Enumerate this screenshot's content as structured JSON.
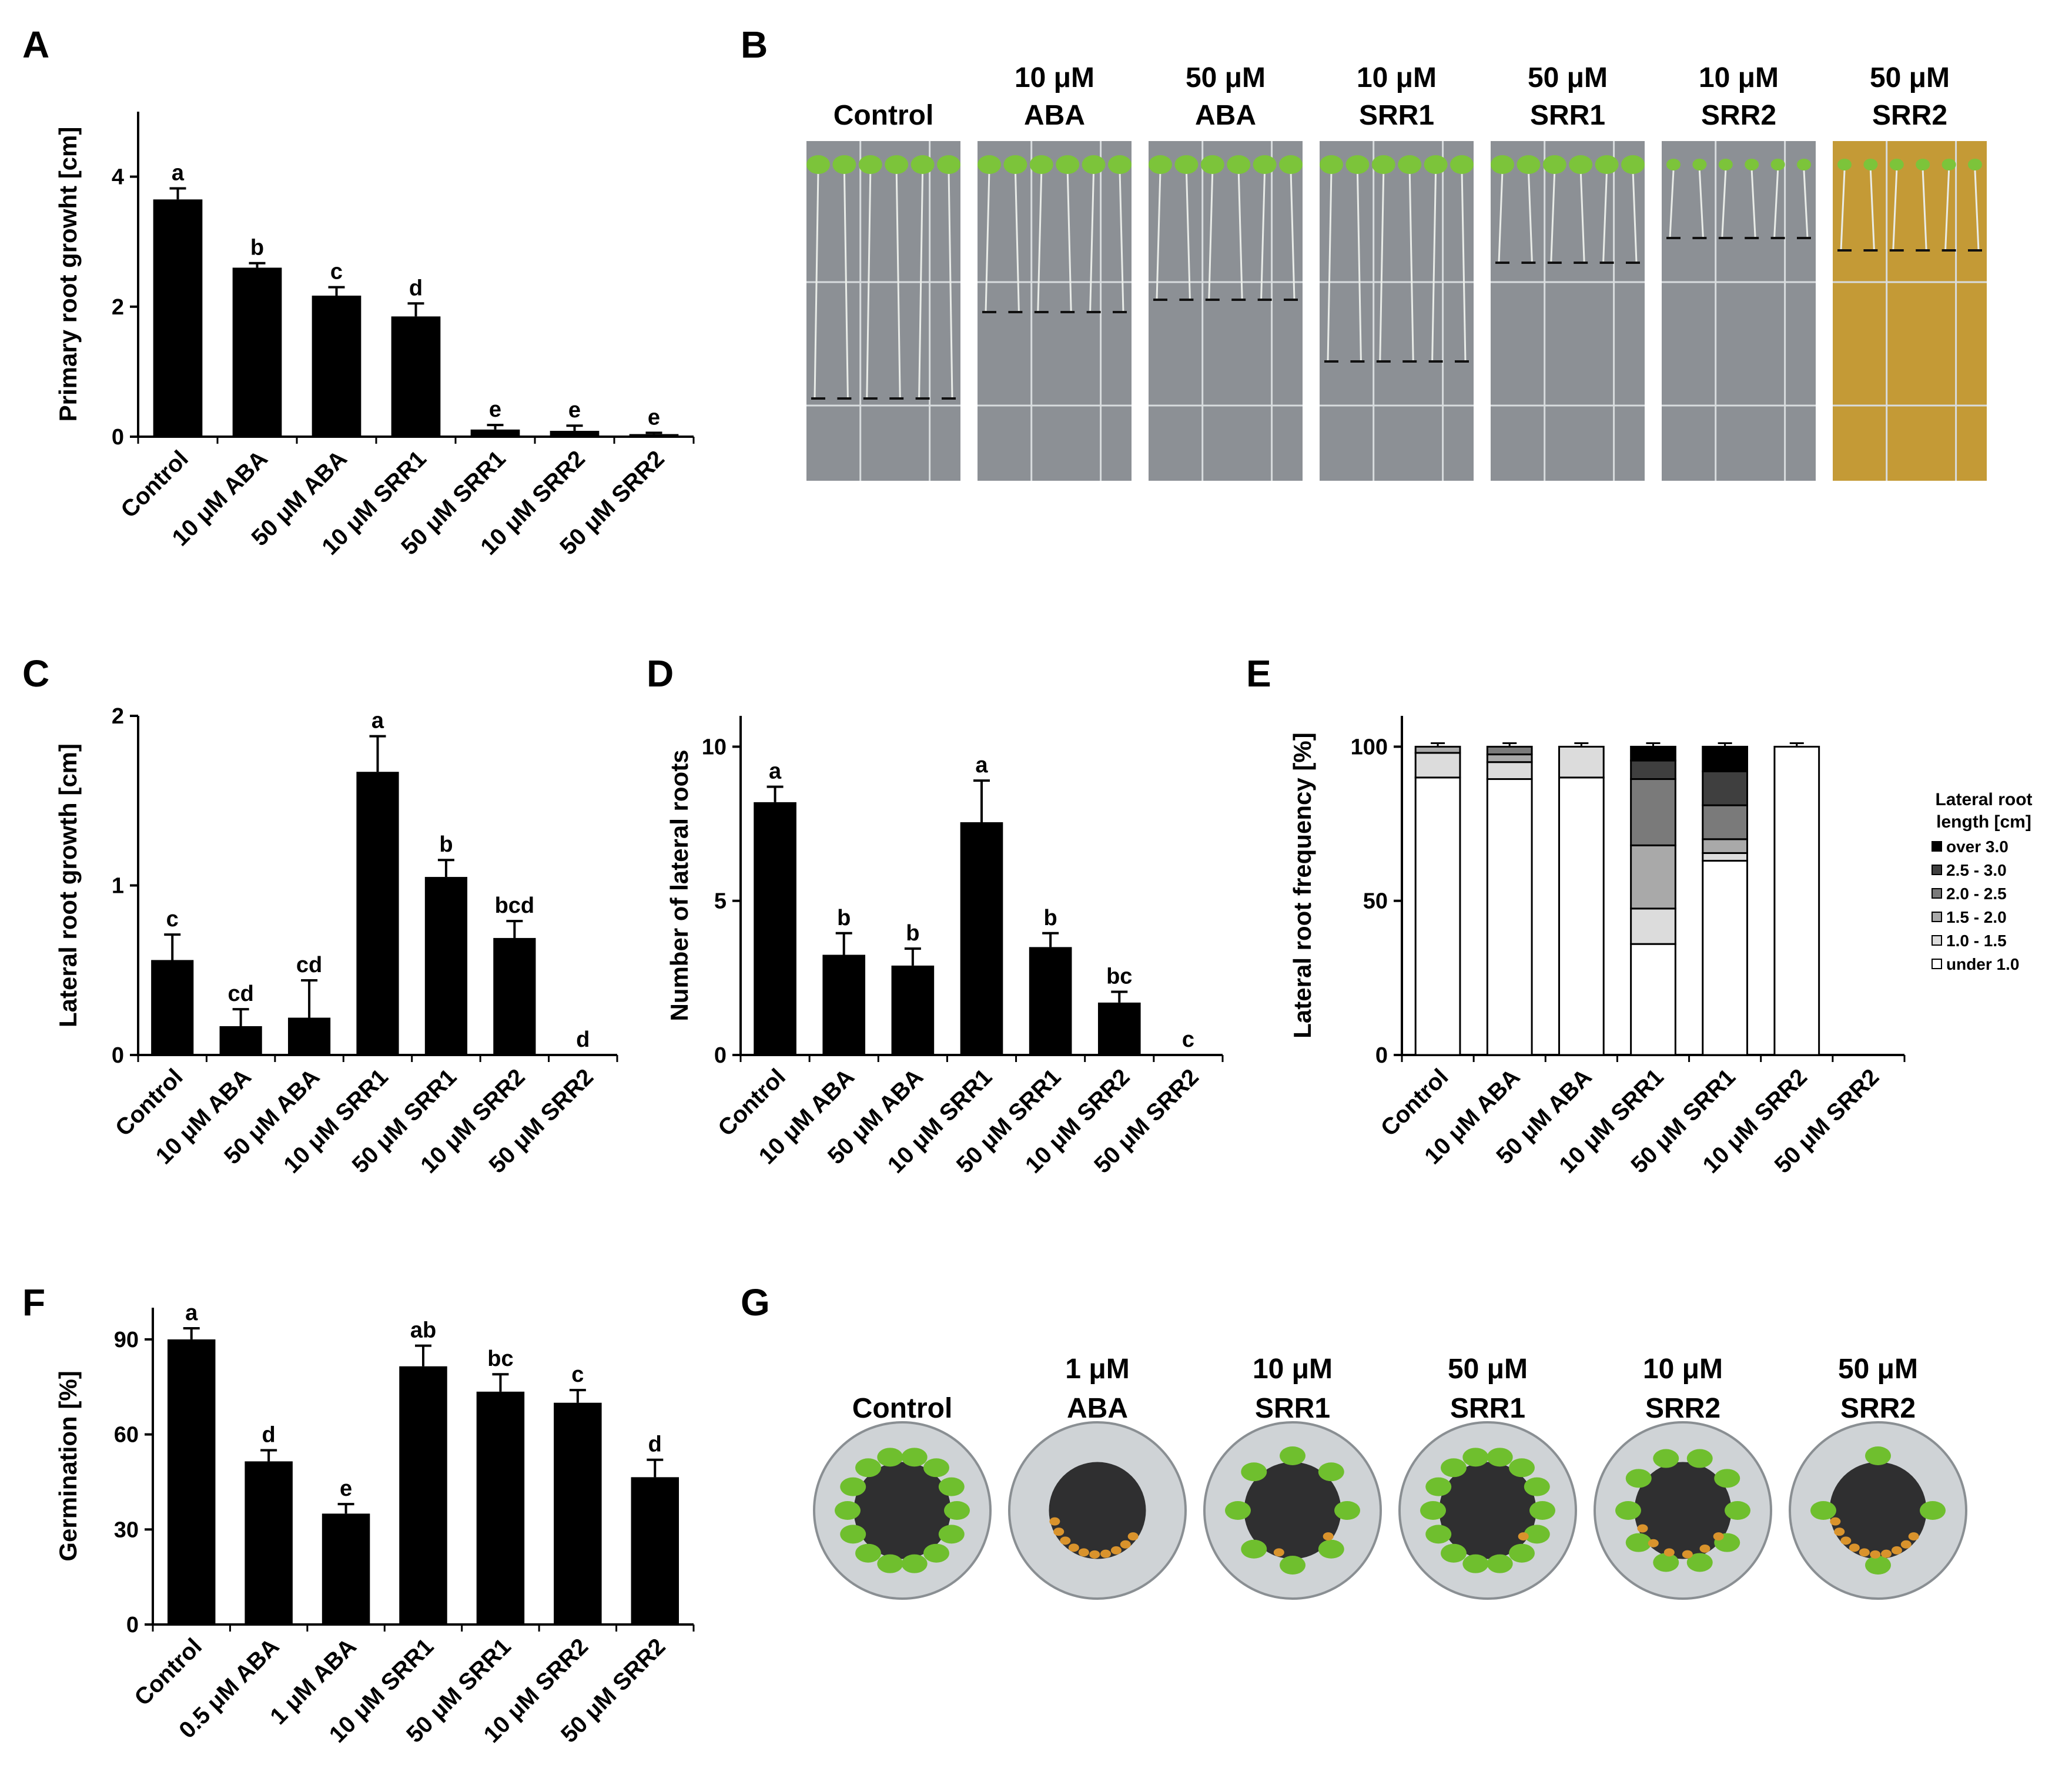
{
  "panels": {
    "A": {
      "letter": "A"
    },
    "B": {
      "letter": "B"
    },
    "C": {
      "letter": "C"
    },
    "D": {
      "letter": "D"
    },
    "E": {
      "letter": "E"
    },
    "F": {
      "letter": "F"
    },
    "G": {
      "letter": "G"
    }
  },
  "photo_B": {
    "labels": [
      {
        "line1": "",
        "line2": "Control"
      },
      {
        "line1": "10 μM",
        "line2": "ABA"
      },
      {
        "line1": "50 μM",
        "line2": "ABA"
      },
      {
        "line1": "10 μM",
        "line2": "SRR1"
      },
      {
        "line1": "50 μM",
        "line2": "SRR1"
      },
      {
        "line1": "10 μM",
        "line2": "SRR2"
      },
      {
        "line1": "50 μM",
        "line2": "SRR2"
      }
    ],
    "colors": {
      "plate": "#8c9095",
      "plate_last": "#c49a36",
      "leaf": "#7cc43a",
      "root": "#e9ece8",
      "mark": "#111111",
      "grid": "#d8dcde"
    }
  },
  "photo_G": {
    "labels": [
      {
        "line1": "",
        "line2": "Control"
      },
      {
        "line1": "1 μM",
        "line2": "ABA"
      },
      {
        "line1": "10 μM",
        "line2": "SRR1"
      },
      {
        "line1": "50 μM",
        "line2": "SRR1"
      },
      {
        "line1": "10 μM",
        "line2": "SRR2"
      },
      {
        "line1": "50 μM",
        "line2": "SRR2"
      }
    ],
    "colors": {
      "rim": "#cfd3d6",
      "soil": "#2f2f30",
      "seedling": "#6fbf2e",
      "seed": "#d9932c"
    }
  },
  "chart_data": [
    {
      "id": "A",
      "type": "bar",
      "title": "",
      "xlabel": "",
      "ylabel": "Primary root growht [cm]",
      "categories": [
        "Control",
        "10 μM ABA",
        "50 μM ABA",
        "10 μM SRR1",
        "50 μM SRR1",
        "10 μM SRR2",
        "50 μM SRR2"
      ],
      "values": [
        3.65,
        2.6,
        2.17,
        1.85,
        0.11,
        0.09,
        0.04
      ],
      "errors": [
        0.17,
        0.07,
        0.13,
        0.2,
        0.07,
        0.08,
        0.02
      ],
      "letters": [
        "a",
        "b",
        "c",
        "d",
        "e",
        "e",
        "e"
      ],
      "ylim": [
        0,
        5
      ],
      "yticks": [
        0,
        2,
        4
      ],
      "bar_color": "#000000"
    },
    {
      "id": "C",
      "type": "bar",
      "title": "",
      "xlabel": "",
      "ylabel": "Lateral root growth [cm]",
      "categories": [
        "Control",
        "10 μM ABA",
        "50 μM ABA",
        "10 μM SRR1",
        "50 μM SRR1",
        "10 μM SRR2",
        "50 μM SRR2"
      ],
      "values": [
        0.56,
        0.17,
        0.22,
        1.67,
        1.05,
        0.69,
        0
      ],
      "errors": [
        0.15,
        0.1,
        0.22,
        0.21,
        0.1,
        0.1,
        0
      ],
      "letters": [
        "c",
        "cd",
        "cd",
        "a",
        "b",
        "bcd",
        "d"
      ],
      "ylim": [
        0,
        2
      ],
      "yticks": [
        0,
        1,
        2
      ],
      "bar_color": "#000000"
    },
    {
      "id": "D",
      "type": "bar",
      "title": "",
      "xlabel": "",
      "ylabel": "Number of lateral roots",
      "categories": [
        "Control",
        "10 μM ABA",
        "50 μM ABA",
        "10 μM SRR1",
        "50 μM SRR1",
        "10 μM SRR2",
        "50 μM SRR2"
      ],
      "values": [
        8.2,
        3.25,
        2.9,
        7.55,
        3.5,
        1.7,
        0
      ],
      "errors": [
        0.5,
        0.7,
        0.55,
        1.35,
        0.45,
        0.35,
        0
      ],
      "letters": [
        "a",
        "b",
        "b",
        "a",
        "b",
        "bc",
        "c"
      ],
      "ylim": [
        0,
        11
      ],
      "yticks": [
        0,
        5,
        10
      ],
      "bar_color": "#000000"
    },
    {
      "id": "E",
      "type": "bar",
      "stacked": true,
      "title": "",
      "xlabel": "",
      "ylabel": "Lateral root frequency [%]",
      "categories": [
        "Control",
        "10 μM ABA",
        "50 μM ABA",
        "10 μM SRR1",
        "50 μM SRR1",
        "10 μM SRR2",
        "50 μM SRR2"
      ],
      "series": [
        {
          "name": "under 1.0",
          "color": "#ffffff",
          "values": [
            90,
            89.5,
            90,
            36,
            63,
            100,
            0
          ]
        },
        {
          "name": "1.0 - 1.5",
          "color": "#dcdcdc",
          "values": [
            8,
            5.5,
            10,
            11.5,
            2.5,
            0,
            0
          ]
        },
        {
          "name": "1.5 - 2.0",
          "color": "#a9a9a9",
          "values": [
            2,
            2.5,
            0,
            20.5,
            4.5,
            0,
            0
          ]
        },
        {
          "name": "2.0 - 2.5",
          "color": "#7a7a7a",
          "values": [
            0,
            2.5,
            0,
            21.5,
            11,
            0,
            0
          ]
        },
        {
          "name": "2.5 - 3.0",
          "color": "#3f3f3f",
          "values": [
            0,
            0,
            0,
            6,
            11,
            0,
            0
          ]
        },
        {
          "name": "over 3.0",
          "color": "#000000",
          "values": [
            0,
            0,
            0,
            4.5,
            8,
            0,
            0
          ]
        }
      ],
      "ylim": [
        0,
        110
      ],
      "yticks": [
        0,
        50,
        100
      ],
      "legend_title": "Lateral root length [cm]",
      "legend_title_line1": "Lateral root",
      "legend_title_line2": "length [cm]",
      "legend_position": "right"
    },
    {
      "id": "F",
      "type": "bar",
      "title": "",
      "xlabel": "",
      "ylabel": "Germination [%]",
      "categories": [
        "Control",
        "0.5 μM ABA",
        "1 μM ABA",
        "10 μM SRR1",
        "50 μM SRR1",
        "10 μM SRR2",
        "50 μM SRR2"
      ],
      "values": [
        90,
        51.5,
        35,
        81.5,
        73.5,
        70,
        46.5
      ],
      "errors": [
        3.5,
        3.5,
        3,
        6.5,
        5.5,
        4,
        5.5
      ],
      "letters": [
        "a",
        "d",
        "e",
        "ab",
        "bc",
        "c",
        "d"
      ],
      "ylim": [
        0,
        100
      ],
      "yticks": [
        0,
        30,
        60,
        90
      ],
      "bar_color": "#000000"
    }
  ]
}
